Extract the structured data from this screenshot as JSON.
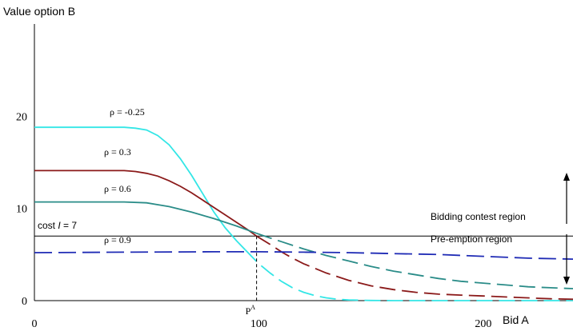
{
  "chart_data": {
    "type": "line",
    "ylabel": "Value option B",
    "xlabel": "Bid A",
    "xlim": [
      0,
      240
    ],
    "ylim": [
      0,
      30
    ],
    "x_ticks": [
      0,
      100,
      200
    ],
    "y_ticks": [
      0,
      10,
      20
    ],
    "grid": false,
    "colors": {
      "axis": "#000000",
      "cost_line": "#000000",
      "rho_neg025": "#33E6E6",
      "rho_03": "#8B1A1A",
      "rho_06": "#2A8C88",
      "rho_09": "#1F2BB5"
    },
    "cost_line": {
      "label": "cost I = 7",
      "label_prefix": "cost ",
      "label_var": "I",
      "label_suffix": " = 7",
      "value": 7
    },
    "marker": {
      "x": 99,
      "label_base": "P",
      "label_sup": "A"
    },
    "region_labels": {
      "upper": "Bidding contest region",
      "lower": "Pre-emption region"
    },
    "series": [
      {
        "name": "ρ = -0.25",
        "key": "rho_neg025",
        "solid_until_x": 94,
        "points": [
          [
            0,
            18.8
          ],
          [
            20,
            18.8
          ],
          [
            40,
            18.8
          ],
          [
            45,
            18.7
          ],
          [
            50,
            18.5
          ],
          [
            55,
            17.9
          ],
          [
            60,
            16.9
          ],
          [
            65,
            15.4
          ],
          [
            70,
            13.6
          ],
          [
            75,
            11.6
          ],
          [
            80,
            9.6
          ],
          [
            85,
            7.9
          ],
          [
            90,
            6.5
          ],
          [
            94,
            5.5
          ],
          [
            100,
            4.0
          ],
          [
            105,
            3.0
          ],
          [
            110,
            2.1
          ],
          [
            115,
            1.4
          ],
          [
            120,
            0.9
          ],
          [
            125,
            0.55
          ],
          [
            130,
            0.3
          ],
          [
            135,
            0.15
          ],
          [
            140,
            0.07
          ],
          [
            150,
            0.02
          ],
          [
            160,
            0.0
          ],
          [
            200,
            0.0
          ],
          [
            240,
            0.0
          ]
        ]
      },
      {
        "name": "ρ = 0.3",
        "key": "rho_03",
        "solid_until_x": 99,
        "points": [
          [
            0,
            14.1
          ],
          [
            20,
            14.1
          ],
          [
            40,
            14.1
          ],
          [
            45,
            14.0
          ],
          [
            50,
            13.8
          ],
          [
            55,
            13.5
          ],
          [
            60,
            13.0
          ],
          [
            65,
            12.4
          ],
          [
            70,
            11.7
          ],
          [
            75,
            10.9
          ],
          [
            80,
            10.1
          ],
          [
            85,
            9.3
          ],
          [
            90,
            8.5
          ],
          [
            95,
            7.7
          ],
          [
            99,
            7.0
          ],
          [
            105,
            6.1
          ],
          [
            110,
            5.3
          ],
          [
            115,
            4.6
          ],
          [
            120,
            4.0
          ],
          [
            125,
            3.5
          ],
          [
            130,
            3.0
          ],
          [
            135,
            2.6
          ],
          [
            140,
            2.2
          ],
          [
            150,
            1.6
          ],
          [
            160,
            1.2
          ],
          [
            170,
            0.9
          ],
          [
            180,
            0.7
          ],
          [
            190,
            0.6
          ],
          [
            200,
            0.5
          ],
          [
            215,
            0.35
          ],
          [
            230,
            0.2
          ],
          [
            240,
            0.15
          ]
        ]
      },
      {
        "name": "ρ = 0.6",
        "key": "rho_06",
        "solid_until_x": 99,
        "points": [
          [
            0,
            10.7
          ],
          [
            20,
            10.7
          ],
          [
            40,
            10.7
          ],
          [
            50,
            10.6
          ],
          [
            60,
            10.2
          ],
          [
            70,
            9.6
          ],
          [
            80,
            8.9
          ],
          [
            90,
            8.1
          ],
          [
            99,
            7.3
          ],
          [
            105,
            6.8
          ],
          [
            110,
            6.4
          ],
          [
            120,
            5.6
          ],
          [
            130,
            4.9
          ],
          [
            140,
            4.3
          ],
          [
            150,
            3.7
          ],
          [
            160,
            3.2
          ],
          [
            170,
            2.8
          ],
          [
            180,
            2.4
          ],
          [
            190,
            2.1
          ],
          [
            200,
            1.9
          ],
          [
            210,
            1.7
          ],
          [
            220,
            1.5
          ],
          [
            230,
            1.4
          ],
          [
            240,
            1.3
          ]
        ]
      },
      {
        "name": "ρ = 0.9",
        "key": "rho_09",
        "solid_until_x": 160,
        "dash_from_start": true,
        "points": [
          [
            0,
            5.2
          ],
          [
            40,
            5.25
          ],
          [
            80,
            5.3
          ],
          [
            100,
            5.3
          ],
          [
            120,
            5.25
          ],
          [
            140,
            5.2
          ],
          [
            160,
            5.1
          ],
          [
            180,
            5.0
          ],
          [
            200,
            4.8
          ],
          [
            220,
            4.6
          ],
          [
            240,
            4.5
          ]
        ]
      }
    ],
    "curve_labels": [
      {
        "series": "rho_neg025",
        "text": "ρ = -0.25"
      },
      {
        "series": "rho_03",
        "text": "ρ = 0.3"
      },
      {
        "series": "rho_06",
        "text": "ρ = 0.6"
      },
      {
        "series": "rho_09",
        "text": "ρ = 0.9"
      }
    ]
  }
}
